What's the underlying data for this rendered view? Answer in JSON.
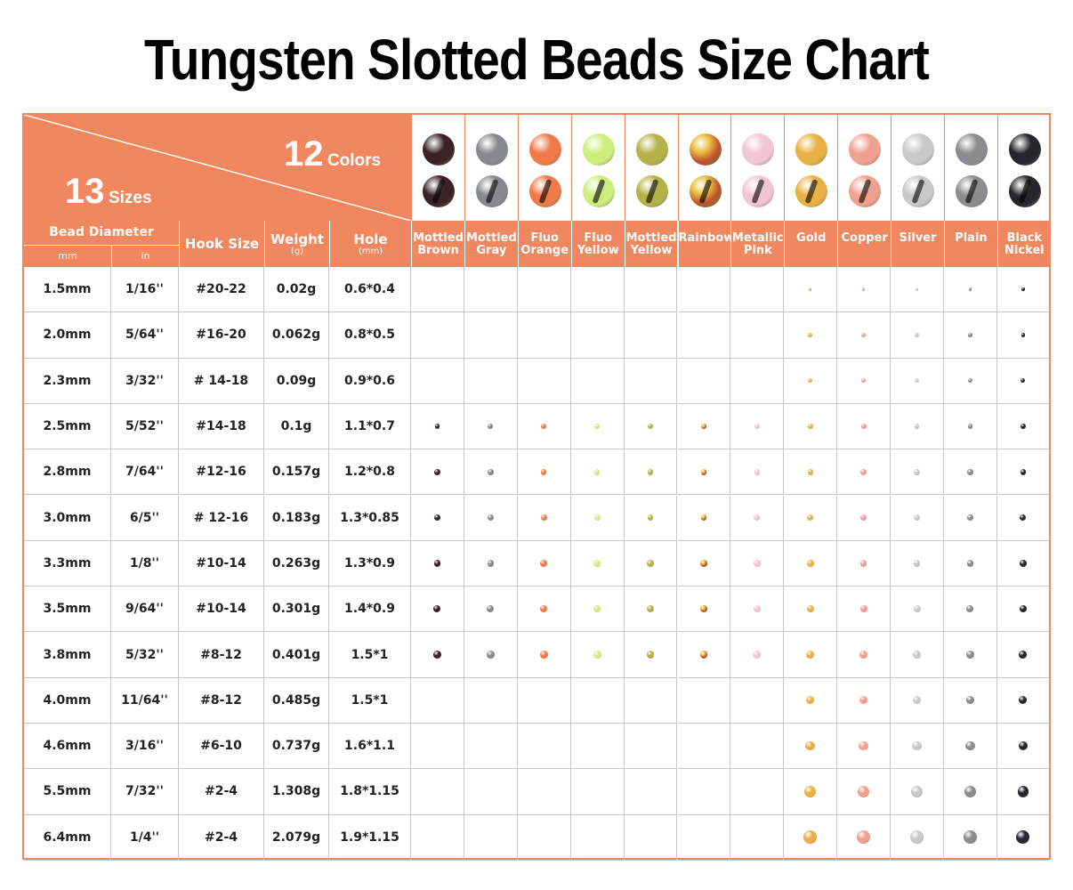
{
  "title": "Tungsten Slotted Beads Size Chart",
  "corner": {
    "colors_num": "12",
    "colors_word": "Colors",
    "sizes_num": "13",
    "sizes_word": "Sizes"
  },
  "headers": {
    "bead_diameter": "Bead Diameter",
    "mm": "mm",
    "in": "in",
    "hook_size": "Hook Size",
    "weight": "Weight",
    "weight_unit": "(g)",
    "hole": "Hole",
    "hole_unit": "(mm)"
  },
  "colors": [
    {
      "l1": "Mottled",
      "l2": "Brown",
      "hex": "#3b2224",
      "avail": "2.5-3.8"
    },
    {
      "l1": "Mottled",
      "l2": "Gray",
      "hex": "#868a8e",
      "avail": "2.5-3.8"
    },
    {
      "l1": "Fluo",
      "l2": "Orange",
      "hex": "#f07a48",
      "avail": "2.5-3.8"
    },
    {
      "l1": "Fluo",
      "l2": "Yellow",
      "hex": "#cdee7c",
      "avail": "2.5-3.8"
    },
    {
      "l1": "Mottled",
      "l2": "Yellow",
      "hex": "#b5b24a",
      "avail": "2.5-3.8"
    },
    {
      "l1": "Rainbow",
      "l2": "",
      "hex": "#d08a3a",
      "avail": "2.5-3.8"
    },
    {
      "l1": "Metallic",
      "l2": "Pink",
      "hex": "#f3c4d2",
      "avail": "2.5-3.8"
    },
    {
      "l1": "Gold",
      "l2": "",
      "hex": "#e9b143",
      "avail": "all"
    },
    {
      "l1": "Copper",
      "l2": "",
      "hex": "#f0a08e",
      "avail": "all"
    },
    {
      "l1": "Silver",
      "l2": "",
      "hex": "#c9c9c9",
      "avail": "all"
    },
    {
      "l1": "Plain",
      "l2": "",
      "hex": "#8b8b90",
      "avail": "all"
    },
    {
      "l1": "Black",
      "l2": "Nickel",
      "hex": "#26262c",
      "avail": "all"
    }
  ],
  "rows": [
    {
      "mm": "1.5mm",
      "in": "1/16''",
      "hook": "#20-22",
      "weight": "0.02g",
      "hole": "0.6*0.4",
      "d": 1.5
    },
    {
      "mm": "2.0mm",
      "in": "5/64''",
      "hook": "#16-20",
      "weight": "0.062g",
      "hole": "0.8*0.5",
      "d": 2.0
    },
    {
      "mm": "2.3mm",
      "in": "3/32''",
      "hook": "# 14-18",
      "weight": "0.09g",
      "hole": "0.9*0.6",
      "d": 2.3
    },
    {
      "mm": "2.5mm",
      "in": "5/52''",
      "hook": "#14-18",
      "weight": "0.1g",
      "hole": "1.1*0.7",
      "d": 2.5
    },
    {
      "mm": "2.8mm",
      "in": "7/64''",
      "hook": "#12-16",
      "weight": "0.157g",
      "hole": "1.2*0.8",
      "d": 2.8
    },
    {
      "mm": "3.0mm",
      "in": "6/5''",
      "hook": "# 12-16",
      "weight": "0.183g",
      "hole": "1.3*0.85",
      "d": 3.0
    },
    {
      "mm": "3.3mm",
      "in": "1/8''",
      "hook": "#10-14",
      "weight": "0.263g",
      "hole": "1.3*0.9",
      "d": 3.3
    },
    {
      "mm": "3.5mm",
      "in": "9/64''",
      "hook": "#10-14",
      "weight": "0.301g",
      "hole": "1.4*0.9",
      "d": 3.5
    },
    {
      "mm": "3.8mm",
      "in": "5/32''",
      "hook": "#8-12",
      "weight": "0.401g",
      "hole": "1.5*1",
      "d": 3.8
    },
    {
      "mm": "4.0mm",
      "in": "11/64''",
      "hook": "#8-12",
      "weight": "0.485g",
      "hole": "1.5*1",
      "d": 4.0
    },
    {
      "mm": "4.6mm",
      "in": "3/16''",
      "hook": "#6-10",
      "weight": "0.737g",
      "hole": "1.6*1.1",
      "d": 4.6
    },
    {
      "mm": "5.5mm",
      "in": "7/32''",
      "hook": "#2-4",
      "weight": "1.308g",
      "hole": "1.8*1.15",
      "d": 5.5
    },
    {
      "mm": "6.4mm",
      "in": "1/4''",
      "hook": "#2-4",
      "weight": "2.079g",
      "hole": "1.9*1.15",
      "d": 6.4
    }
  ]
}
